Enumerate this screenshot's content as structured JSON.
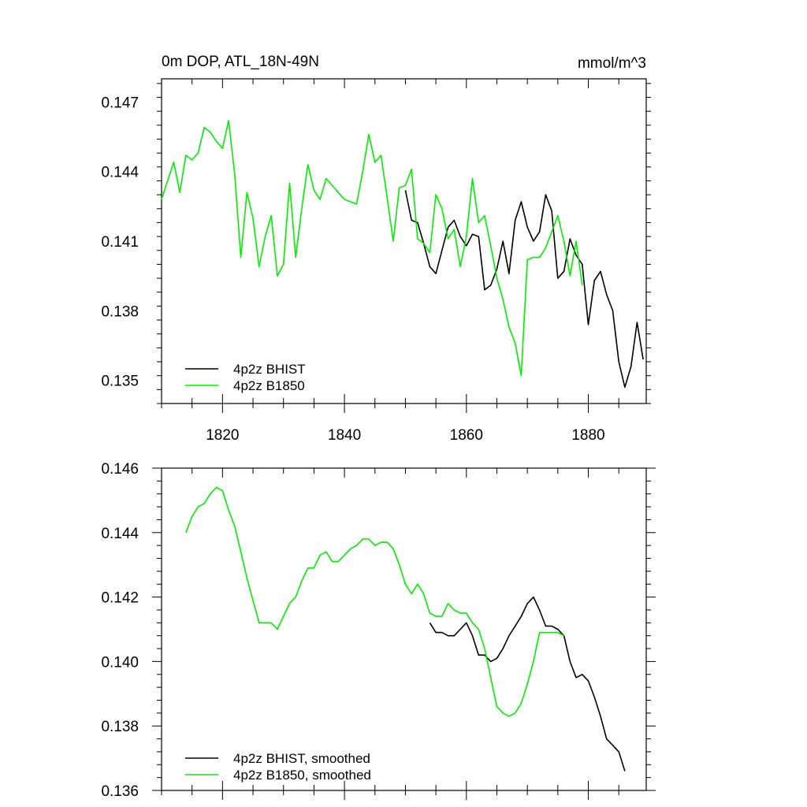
{
  "chart_data": [
    {
      "type": "line",
      "title": "0m DOP, ATL_18N-49N",
      "units": "mmol/m^3",
      "xlabel": "",
      "ylabel": "",
      "xlim": [
        1810,
        1889.5
      ],
      "ylim": [
        0.134,
        0.148
      ],
      "x_ticks": [
        1820,
        1840,
        1860,
        1880
      ],
      "x_tick_labels": [
        "1820",
        "1840",
        "1860",
        "1880"
      ],
      "y_ticks": [
        0.135,
        0.138,
        0.141,
        0.144,
        0.147
      ],
      "y_tick_labels": [
        "0.135",
        "0.138",
        "0.141",
        "0.144",
        "0.147"
      ],
      "legend_position": "bottom-left",
      "series": [
        {
          "name": "4p2z BHIST",
          "color": "#000000",
          "x": [
            1850,
            1851,
            1852,
            1853,
            1854,
            1855,
            1856,
            1857,
            1858,
            1859,
            1860,
            1861,
            1862,
            1863,
            1864,
            1865,
            1866,
            1867,
            1868,
            1869,
            1870,
            1871,
            1872,
            1873,
            1874,
            1875,
            1876,
            1877,
            1878,
            1879,
            1880,
            1881,
            1882,
            1883,
            1884,
            1885,
            1886,
            1887,
            1888,
            1889
          ],
          "values": [
            0.1432,
            0.1419,
            0.1418,
            0.1409,
            0.1399,
            0.1396,
            0.1406,
            0.1416,
            0.1419,
            0.1412,
            0.1408,
            0.1413,
            0.1412,
            0.1389,
            0.1391,
            0.1398,
            0.141,
            0.1396,
            0.1419,
            0.1427,
            0.1416,
            0.141,
            0.1414,
            0.143,
            0.1423,
            0.1394,
            0.1397,
            0.1411,
            0.1404,
            0.14,
            0.1374,
            0.1393,
            0.1397,
            0.1387,
            0.138,
            0.1358,
            0.1347,
            0.1356,
            0.1375,
            0.1359
          ]
        },
        {
          "name": "4p2z B1850",
          "color": "#00ee00",
          "x": [
            1810,
            1811,
            1812,
            1813,
            1814,
            1815,
            1816,
            1817,
            1818,
            1819,
            1820,
            1821,
            1822,
            1823,
            1824,
            1825,
            1826,
            1827,
            1828,
            1829,
            1830,
            1831,
            1832,
            1833,
            1834,
            1835,
            1836,
            1837,
            1838,
            1839,
            1840,
            1841,
            1842,
            1843,
            1844,
            1845,
            1846,
            1847,
            1848,
            1849,
            1850,
            1851,
            1852,
            1853,
            1854,
            1855,
            1856,
            1857,
            1858,
            1859,
            1860,
            1861,
            1862,
            1863,
            1864,
            1865,
            1866,
            1867,
            1868,
            1869,
            1870,
            1871,
            1872,
            1873,
            1874,
            1875,
            1876,
            1877,
            1878,
            1879
          ],
          "values": [
            0.1428,
            0.1436,
            0.1444,
            0.1431,
            0.1447,
            0.1445,
            0.1448,
            0.1459,
            0.1457,
            0.1453,
            0.145,
            0.1462,
            0.1439,
            0.1403,
            0.1431,
            0.142,
            0.1399,
            0.1412,
            0.1421,
            0.1395,
            0.14,
            0.1435,
            0.1403,
            0.1424,
            0.1443,
            0.1432,
            0.1428,
            0.1437,
            0.1434,
            0.1431,
            0.1428,
            0.1427,
            0.1426,
            0.144,
            0.1456,
            0.1444,
            0.1447,
            0.1429,
            0.141,
            0.1433,
            0.1434,
            0.1441,
            0.1411,
            0.1409,
            0.1405,
            0.143,
            0.1424,
            0.1411,
            0.1415,
            0.1399,
            0.1412,
            0.1437,
            0.1418,
            0.1421,
            0.1408,
            0.1394,
            0.1385,
            0.1373,
            0.1366,
            0.1352,
            0.1402,
            0.1403,
            0.1403,
            0.1407,
            0.1414,
            0.1421,
            0.141,
            0.1395,
            0.141,
            0.1391
          ]
        }
      ]
    },
    {
      "type": "line",
      "title": "",
      "xlabel": "",
      "ylabel": "",
      "xlim": [
        1810,
        1889.5
      ],
      "ylim": [
        0.136,
        0.146
      ],
      "x_ticks": [
        1820,
        1840,
        1860,
        1880
      ],
      "x_tick_labels": [],
      "y_ticks": [
        0.136,
        0.138,
        0.14,
        0.142,
        0.144,
        0.146
      ],
      "y_tick_labels": [
        "0.136",
        "0.138",
        "0.140",
        "0.142",
        "0.144",
        "0.146"
      ],
      "legend_position": "bottom-left",
      "series": [
        {
          "name": "4p2z BHIST, smoothed",
          "color": "#000000",
          "x": [
            1854,
            1855,
            1856,
            1857,
            1858,
            1859,
            1860,
            1861,
            1862,
            1863,
            1864,
            1865,
            1866,
            1867,
            1868,
            1869,
            1870,
            1871,
            1872,
            1873,
            1874,
            1875,
            1876,
            1877,
            1878,
            1879,
            1880,
            1881,
            1882,
            1883,
            1884,
            1885,
            1886
          ],
          "values": [
            0.1412,
            0.1409,
            0.1409,
            0.1408,
            0.1408,
            0.141,
            0.1412,
            0.1408,
            0.1402,
            0.1402,
            0.14,
            0.1401,
            0.1404,
            0.1408,
            0.1411,
            0.1414,
            0.1418,
            0.142,
            0.1416,
            0.1411,
            0.1411,
            0.141,
            0.1408,
            0.14,
            0.1395,
            0.1396,
            0.1394,
            0.1389,
            0.1383,
            0.1376,
            0.1374,
            0.1372,
            0.1366
          ]
        },
        {
          "name": "4p2z B1850, smoothed",
          "color": "#00ee00",
          "x": [
            1814,
            1815,
            1816,
            1817,
            1818,
            1819,
            1820,
            1821,
            1822,
            1823,
            1824,
            1825,
            1826,
            1827,
            1828,
            1829,
            1830,
            1831,
            1832,
            1833,
            1834,
            1835,
            1836,
            1837,
            1838,
            1839,
            1840,
            1841,
            1842,
            1843,
            1844,
            1845,
            1846,
            1847,
            1848,
            1849,
            1850,
            1851,
            1852,
            1853,
            1854,
            1855,
            1856,
            1857,
            1858,
            1859,
            1860,
            1861,
            1862,
            1863,
            1864,
            1865,
            1866,
            1867,
            1868,
            1869,
            1870,
            1871,
            1872,
            1873,
            1874,
            1875,
            1876
          ],
          "values": [
            0.144,
            0.1445,
            0.1448,
            0.1449,
            0.1452,
            0.1454,
            0.1453,
            0.1447,
            0.1442,
            0.1434,
            0.1426,
            0.1419,
            0.1412,
            0.1412,
            0.1412,
            0.141,
            0.1414,
            0.1418,
            0.142,
            0.1425,
            0.1429,
            0.1429,
            0.1433,
            0.1434,
            0.1431,
            0.1431,
            0.1433,
            0.1435,
            0.1436,
            0.1438,
            0.1438,
            0.1436,
            0.1437,
            0.1437,
            0.1435,
            0.143,
            0.1424,
            0.1421,
            0.1424,
            0.1421,
            0.1415,
            0.1414,
            0.1414,
            0.1418,
            0.1416,
            0.1415,
            0.1415,
            0.1412,
            0.141,
            0.1404,
            0.1395,
            0.1386,
            0.1384,
            0.1383,
            0.1384,
            0.1387,
            0.1393,
            0.14,
            0.1409,
            0.1409,
            0.1409,
            0.1409,
            0.1408
          ]
        }
      ]
    }
  ]
}
